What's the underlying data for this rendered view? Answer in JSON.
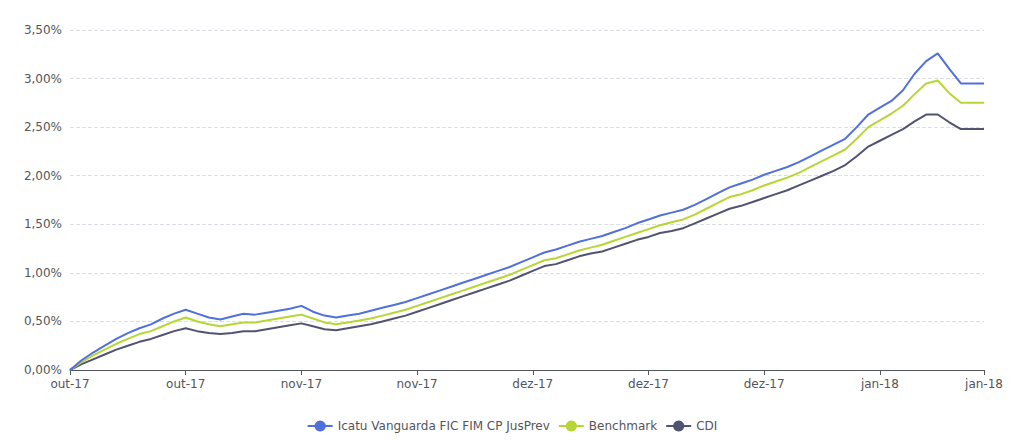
{
  "chart_data": {
    "type": "line",
    "categories": [
      "out-17",
      null,
      null,
      null,
      null,
      null,
      null,
      null,
      null,
      null,
      "out-17",
      null,
      null,
      null,
      null,
      null,
      null,
      null,
      null,
      null,
      "nov-17",
      null,
      null,
      null,
      null,
      null,
      null,
      null,
      null,
      null,
      "nov-17",
      null,
      null,
      null,
      null,
      null,
      null,
      null,
      null,
      null,
      "dez-17",
      null,
      null,
      null,
      null,
      null,
      null,
      null,
      null,
      null,
      "dez-17",
      null,
      null,
      null,
      null,
      null,
      null,
      null,
      null,
      null,
      "dez-17",
      null,
      null,
      null,
      null,
      null,
      null,
      null,
      null,
      null,
      "jan-18",
      null,
      null,
      null,
      null,
      null,
      null,
      null,
      null,
      "jan-18"
    ],
    "series": [
      {
        "name": "Icatu Vanguarda FIC FIM CP JusPrev",
        "values": [
          0.0,
          0.001,
          0.0018,
          0.0025,
          0.0032,
          0.0038,
          0.0043,
          0.0047,
          0.0053,
          0.0058,
          0.0062,
          0.0058,
          0.0054,
          0.0052,
          0.0055,
          0.0058,
          0.0057,
          0.0059,
          0.0061,
          0.0063,
          0.0066,
          0.006,
          0.0056,
          0.0054,
          0.0056,
          0.0058,
          0.0061,
          0.0064,
          0.0067,
          0.007,
          0.0074,
          0.0078,
          0.0082,
          0.0086,
          0.009,
          0.0094,
          0.0098,
          0.0102,
          0.0106,
          0.0111,
          0.0116,
          0.0121,
          0.0124,
          0.0128,
          0.0132,
          0.0135,
          0.0138,
          0.0142,
          0.0146,
          0.0151,
          0.0155,
          0.0159,
          0.0162,
          0.0165,
          0.017,
          0.0176,
          0.0182,
          0.0188,
          0.0192,
          0.0196,
          0.0201,
          0.0205,
          0.0209,
          0.0214,
          0.022,
          0.0226,
          0.0232,
          0.0238,
          0.025,
          0.0263,
          0.027,
          0.0277,
          0.0288,
          0.0305,
          0.0318,
          0.0326,
          0.031,
          0.0295,
          0.0295,
          0.0295
        ]
      },
      {
        "name": "Benchmark",
        "values": [
          0.0,
          0.0008,
          0.0015,
          0.0021,
          0.0027,
          0.0032,
          0.0037,
          0.004,
          0.0045,
          0.005,
          0.0054,
          0.005,
          0.0047,
          0.0045,
          0.0047,
          0.0049,
          0.0049,
          0.0051,
          0.0053,
          0.0055,
          0.0057,
          0.0053,
          0.0049,
          0.0047,
          0.0049,
          0.0051,
          0.0053,
          0.0056,
          0.0059,
          0.0062,
          0.0066,
          0.007,
          0.0074,
          0.0078,
          0.0082,
          0.0086,
          0.009,
          0.0094,
          0.0098,
          0.0103,
          0.0108,
          0.0113,
          0.0115,
          0.0119,
          0.0123,
          0.0126,
          0.0129,
          0.0133,
          0.0137,
          0.0141,
          0.0145,
          0.0149,
          0.0152,
          0.0155,
          0.016,
          0.0166,
          0.0172,
          0.0178,
          0.0181,
          0.0185,
          0.019,
          0.0194,
          0.0198,
          0.0203,
          0.0209,
          0.0215,
          0.0221,
          0.0227,
          0.0238,
          0.025,
          0.0257,
          0.0264,
          0.0272,
          0.0284,
          0.0295,
          0.0298,
          0.0285,
          0.0275,
          0.0275,
          0.0275
        ]
      },
      {
        "name": "CDI",
        "values": [
          0.0,
          0.0006,
          0.0011,
          0.0016,
          0.0021,
          0.0025,
          0.0029,
          0.0032,
          0.0036,
          0.004,
          0.0043,
          0.004,
          0.0038,
          0.0037,
          0.0038,
          0.004,
          0.004,
          0.0042,
          0.0044,
          0.0046,
          0.0048,
          0.0045,
          0.0042,
          0.0041,
          0.0043,
          0.0045,
          0.0047,
          0.005,
          0.0053,
          0.0056,
          0.006,
          0.0064,
          0.0068,
          0.0072,
          0.0076,
          0.008,
          0.0084,
          0.0088,
          0.0092,
          0.0097,
          0.0102,
          0.0107,
          0.0109,
          0.0113,
          0.0117,
          0.012,
          0.0122,
          0.0126,
          0.013,
          0.0134,
          0.0137,
          0.0141,
          0.0143,
          0.0146,
          0.0151,
          0.0156,
          0.0161,
          0.0166,
          0.0169,
          0.0173,
          0.0177,
          0.0181,
          0.0185,
          0.019,
          0.0195,
          0.02,
          0.0205,
          0.0211,
          0.022,
          0.023,
          0.0236,
          0.0242,
          0.0248,
          0.0256,
          0.0263,
          0.0263,
          0.0255,
          0.0248,
          0.0248,
          0.0248
        ]
      }
    ],
    "ylim": [
      0.0,
      0.035
    ],
    "yticks": [
      {
        "value": 0.0,
        "label": "0,00%"
      },
      {
        "value": 0.005,
        "label": "0,50%"
      },
      {
        "value": 0.01,
        "label": "1,00%"
      },
      {
        "value": 0.015,
        "label": "1,50%"
      },
      {
        "value": 0.02,
        "label": "2,00%"
      },
      {
        "value": 0.025,
        "label": "2,50%"
      },
      {
        "value": 0.03,
        "label": "3,00%"
      },
      {
        "value": 0.035,
        "label": "3,50%"
      }
    ],
    "grid": true,
    "legend": "bottom"
  }
}
